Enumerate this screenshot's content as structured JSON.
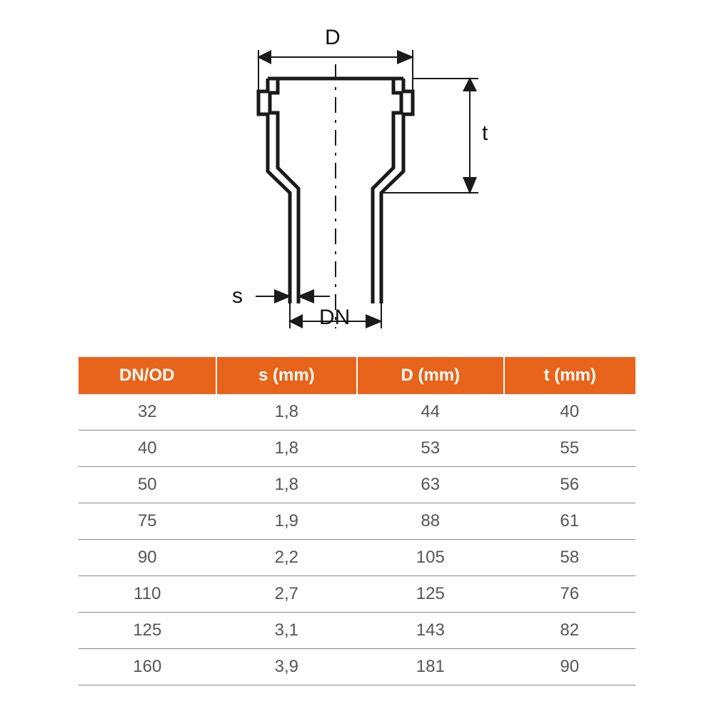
{
  "diagram": {
    "labels": {
      "D": "D",
      "t": "t",
      "s": "s",
      "DN": "DN"
    },
    "stroke_color": "#1a1a1a",
    "stroke_width_main": 5,
    "stroke_width_dim": 2,
    "dash_pattern": "18 10 3 10",
    "label_fontsize": 30,
    "label_color": "#1a1a1a"
  },
  "table": {
    "header_bg": "#e8641b",
    "header_fg": "#ffffff",
    "cell_fg": "#555555",
    "border_color": "#888888",
    "header_fontsize": 24,
    "cell_fontsize": 24,
    "columns": [
      "DN/OD",
      "s (mm)",
      "D (mm)",
      "t (mm)"
    ],
    "rows": [
      [
        "32",
        "1,8",
        "44",
        "40"
      ],
      [
        "40",
        "1,8",
        "53",
        "55"
      ],
      [
        "50",
        "1,8",
        "63",
        "56"
      ],
      [
        "75",
        "1,9",
        "88",
        "61"
      ],
      [
        "90",
        "2,2",
        "105",
        "58"
      ],
      [
        "110",
        "2,7",
        "125",
        "76"
      ],
      [
        "125",
        "3,1",
        "143",
        "82"
      ],
      [
        "160",
        "3,9",
        "181",
        "90"
      ]
    ]
  }
}
